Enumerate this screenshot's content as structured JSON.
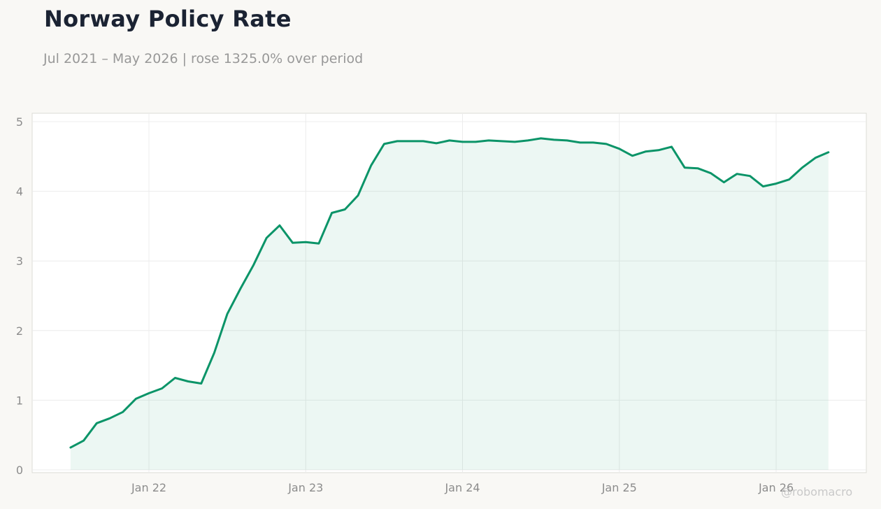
{
  "title": "Norway Policy Rate",
  "subtitle": "Jul 2021 – May 2026 | rose 1325.0% over period",
  "watermark": "@robomacro",
  "colors": {
    "line": "#0b9468",
    "fill": "#0b9468",
    "grid": "#ececec",
    "plot_bg": "#ffffff",
    "page_bg": "#f9f8f5"
  },
  "chart_data": {
    "type": "area",
    "title": "Norway Policy Rate",
    "subtitle": "Jul 2021 – May 2026 | rose 1325.0% over period",
    "xlabel": "",
    "ylabel": "",
    "x_tick_labels": [
      "Jan 22",
      "Jan 23",
      "Jan 24",
      "Jan 25",
      "Jan 26"
    ],
    "x_tick_dates": [
      "2022-01",
      "2023-01",
      "2024-01",
      "2025-01",
      "2026-01"
    ],
    "y_ticks": [
      0,
      1,
      2,
      3,
      4,
      5
    ],
    "ylim": [
      0,
      5.1
    ],
    "xlim": [
      "2021-04",
      "2026-08"
    ],
    "grid": true,
    "legend": "none",
    "series": [
      {
        "x": [
          "2021-07",
          "2021-08",
          "2021-09",
          "2021-10",
          "2021-11",
          "2021-12",
          "2022-01",
          "2022-02",
          "2022-03",
          "2022-04",
          "2022-05",
          "2022-06",
          "2022-07",
          "2022-08",
          "2022-09",
          "2022-10",
          "2022-11",
          "2022-12",
          "2023-01",
          "2023-02",
          "2023-03",
          "2023-04",
          "2023-05",
          "2023-06",
          "2023-07",
          "2023-08",
          "2023-09",
          "2023-10",
          "2023-11",
          "2023-12",
          "2024-01",
          "2024-02",
          "2024-03",
          "2024-04",
          "2024-05",
          "2024-06",
          "2024-07",
          "2024-08",
          "2024-09",
          "2024-10",
          "2024-11",
          "2024-12",
          "2025-01",
          "2025-02",
          "2025-03",
          "2025-04",
          "2025-05",
          "2025-06",
          "2025-07",
          "2025-08",
          "2025-09",
          "2025-10",
          "2025-11",
          "2025-12",
          "2026-01",
          "2026-02",
          "2026-03",
          "2026-04",
          "2026-05"
        ],
        "y": [
          0.32,
          0.42,
          0.67,
          0.74,
          0.83,
          1.02,
          1.1,
          1.17,
          1.32,
          1.27,
          1.24,
          1.68,
          2.24,
          2.6,
          2.94,
          3.33,
          3.51,
          3.26,
          3.27,
          3.25,
          3.69,
          3.74,
          3.94,
          4.37,
          4.68,
          4.72,
          4.72,
          4.72,
          4.69,
          4.73,
          4.71,
          4.71,
          4.73,
          4.72,
          4.71,
          4.73,
          4.76,
          4.74,
          4.73,
          4.7,
          4.7,
          4.68,
          4.61,
          4.51,
          4.57,
          4.59,
          4.64,
          4.34,
          4.33,
          4.26,
          4.13,
          4.25,
          4.22,
          4.07,
          4.11,
          4.17,
          4.34,
          4.48,
          4.56
        ]
      }
    ]
  }
}
